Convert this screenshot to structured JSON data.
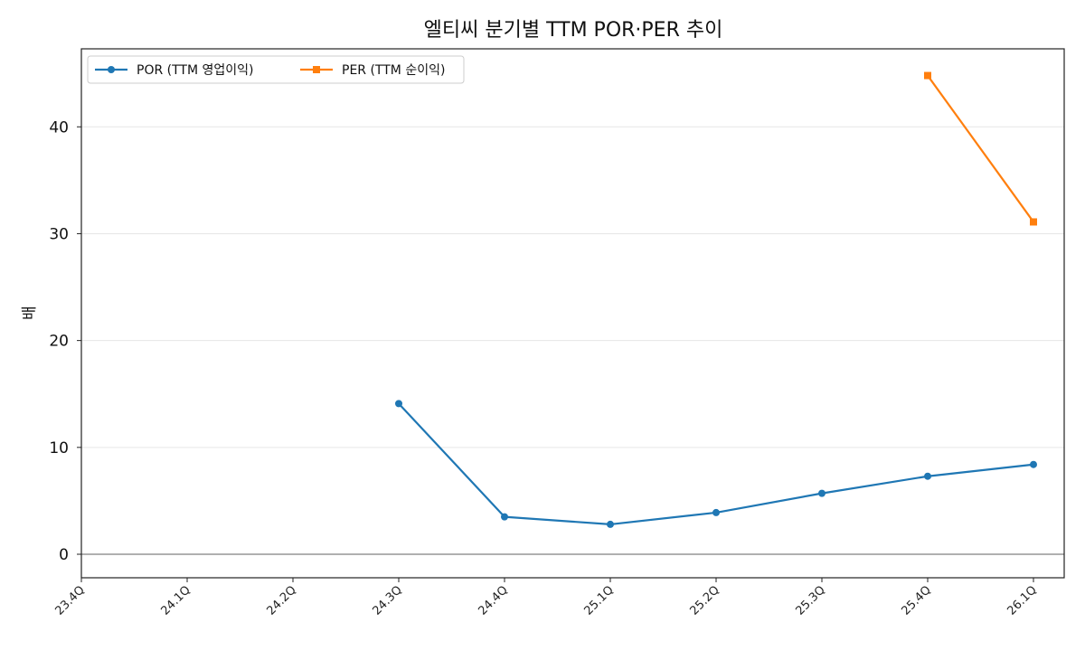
{
  "chart_data": {
    "type": "line",
    "title": "엘티씨 분기별 TTM POR·PER 추이",
    "xlabel": "",
    "ylabel": "배",
    "categories": [
      "23.4Q",
      "24.1Q",
      "24.2Q",
      "24.3Q",
      "24.4Q",
      "25.1Q",
      "25.2Q",
      "25.3Q",
      "25.4Q",
      "26.1Q"
    ],
    "ylim": [
      -2.2,
      47.3
    ],
    "yticks": [
      0,
      10,
      20,
      30,
      40
    ],
    "grid": "horizontal",
    "legend_position": "top-left",
    "series": [
      {
        "name": "POR (TTM 영업이익)",
        "color": "#1f77b4",
        "marker": "circle",
        "values": [
          null,
          null,
          null,
          14.1,
          3.5,
          2.8,
          3.9,
          5.7,
          7.3,
          8.4
        ]
      },
      {
        "name": "PER (TTM 순이익)",
        "color": "#ff7f0e",
        "marker": "square",
        "values": [
          null,
          null,
          null,
          null,
          null,
          null,
          null,
          null,
          44.8,
          31.1
        ]
      }
    ]
  }
}
